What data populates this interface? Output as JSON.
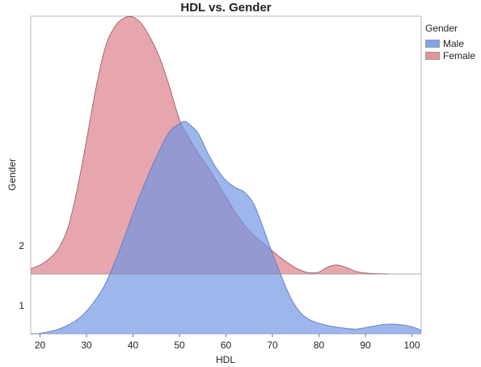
{
  "chart_data": {
    "type": "area",
    "title": "HDL vs. Gender",
    "xlabel": "HDL",
    "ylabel": "Gender",
    "xlim": [
      18,
      102
    ],
    "x_ticks": [
      "20",
      "30",
      "40",
      "50",
      "60",
      "70",
      "80",
      "90",
      "100"
    ],
    "y_categories": [
      "1",
      "2"
    ],
    "legend": {
      "title": "Gender",
      "position": "right",
      "items": [
        {
          "label": "Male",
          "color": "#6f93e3"
        },
        {
          "label": "Female",
          "color": "#dd7f8b"
        }
      ]
    },
    "series": [
      {
        "name": "Male",
        "color": "#6f93e3",
        "baseline_category": "1",
        "x": [
          18,
          20,
          24,
          28,
          31,
          34,
          37,
          40,
          43,
          46,
          48,
          50,
          51,
          52,
          54,
          56,
          58,
          60,
          62,
          64,
          66,
          68,
          70,
          72,
          74,
          76,
          78,
          80,
          82,
          85,
          88,
          91,
          94,
          97,
          100,
          102
        ],
        "density": [
          0.0,
          0.002,
          0.02,
          0.06,
          0.12,
          0.21,
          0.35,
          0.51,
          0.66,
          0.79,
          0.86,
          0.89,
          0.9,
          0.89,
          0.85,
          0.77,
          0.7,
          0.65,
          0.62,
          0.6,
          0.55,
          0.45,
          0.34,
          0.24,
          0.15,
          0.09,
          0.06,
          0.045,
          0.035,
          0.025,
          0.02,
          0.03,
          0.04,
          0.04,
          0.03,
          0.015
        ]
      },
      {
        "name": "Female",
        "color": "#dd7f8b",
        "baseline_category": "2",
        "x": [
          18,
          20,
          22,
          24,
          26,
          28,
          30,
          32,
          34,
          36,
          38,
          40,
          42,
          44,
          46,
          48,
          50,
          52,
          54,
          56,
          58,
          60,
          62,
          64,
          66,
          68,
          70,
          72,
          74,
          76,
          78,
          80,
          82,
          84,
          86,
          88,
          90,
          92,
          95
        ],
        "density": [
          0.02,
          0.035,
          0.06,
          0.1,
          0.18,
          0.33,
          0.52,
          0.72,
          0.88,
          0.96,
          0.995,
          1.0,
          0.97,
          0.91,
          0.83,
          0.72,
          0.6,
          0.53,
          0.47,
          0.42,
          0.36,
          0.3,
          0.24,
          0.19,
          0.15,
          0.12,
          0.09,
          0.06,
          0.035,
          0.015,
          0.005,
          0.008,
          0.028,
          0.035,
          0.025,
          0.01,
          0.004,
          0.002,
          0.0
        ]
      }
    ]
  }
}
